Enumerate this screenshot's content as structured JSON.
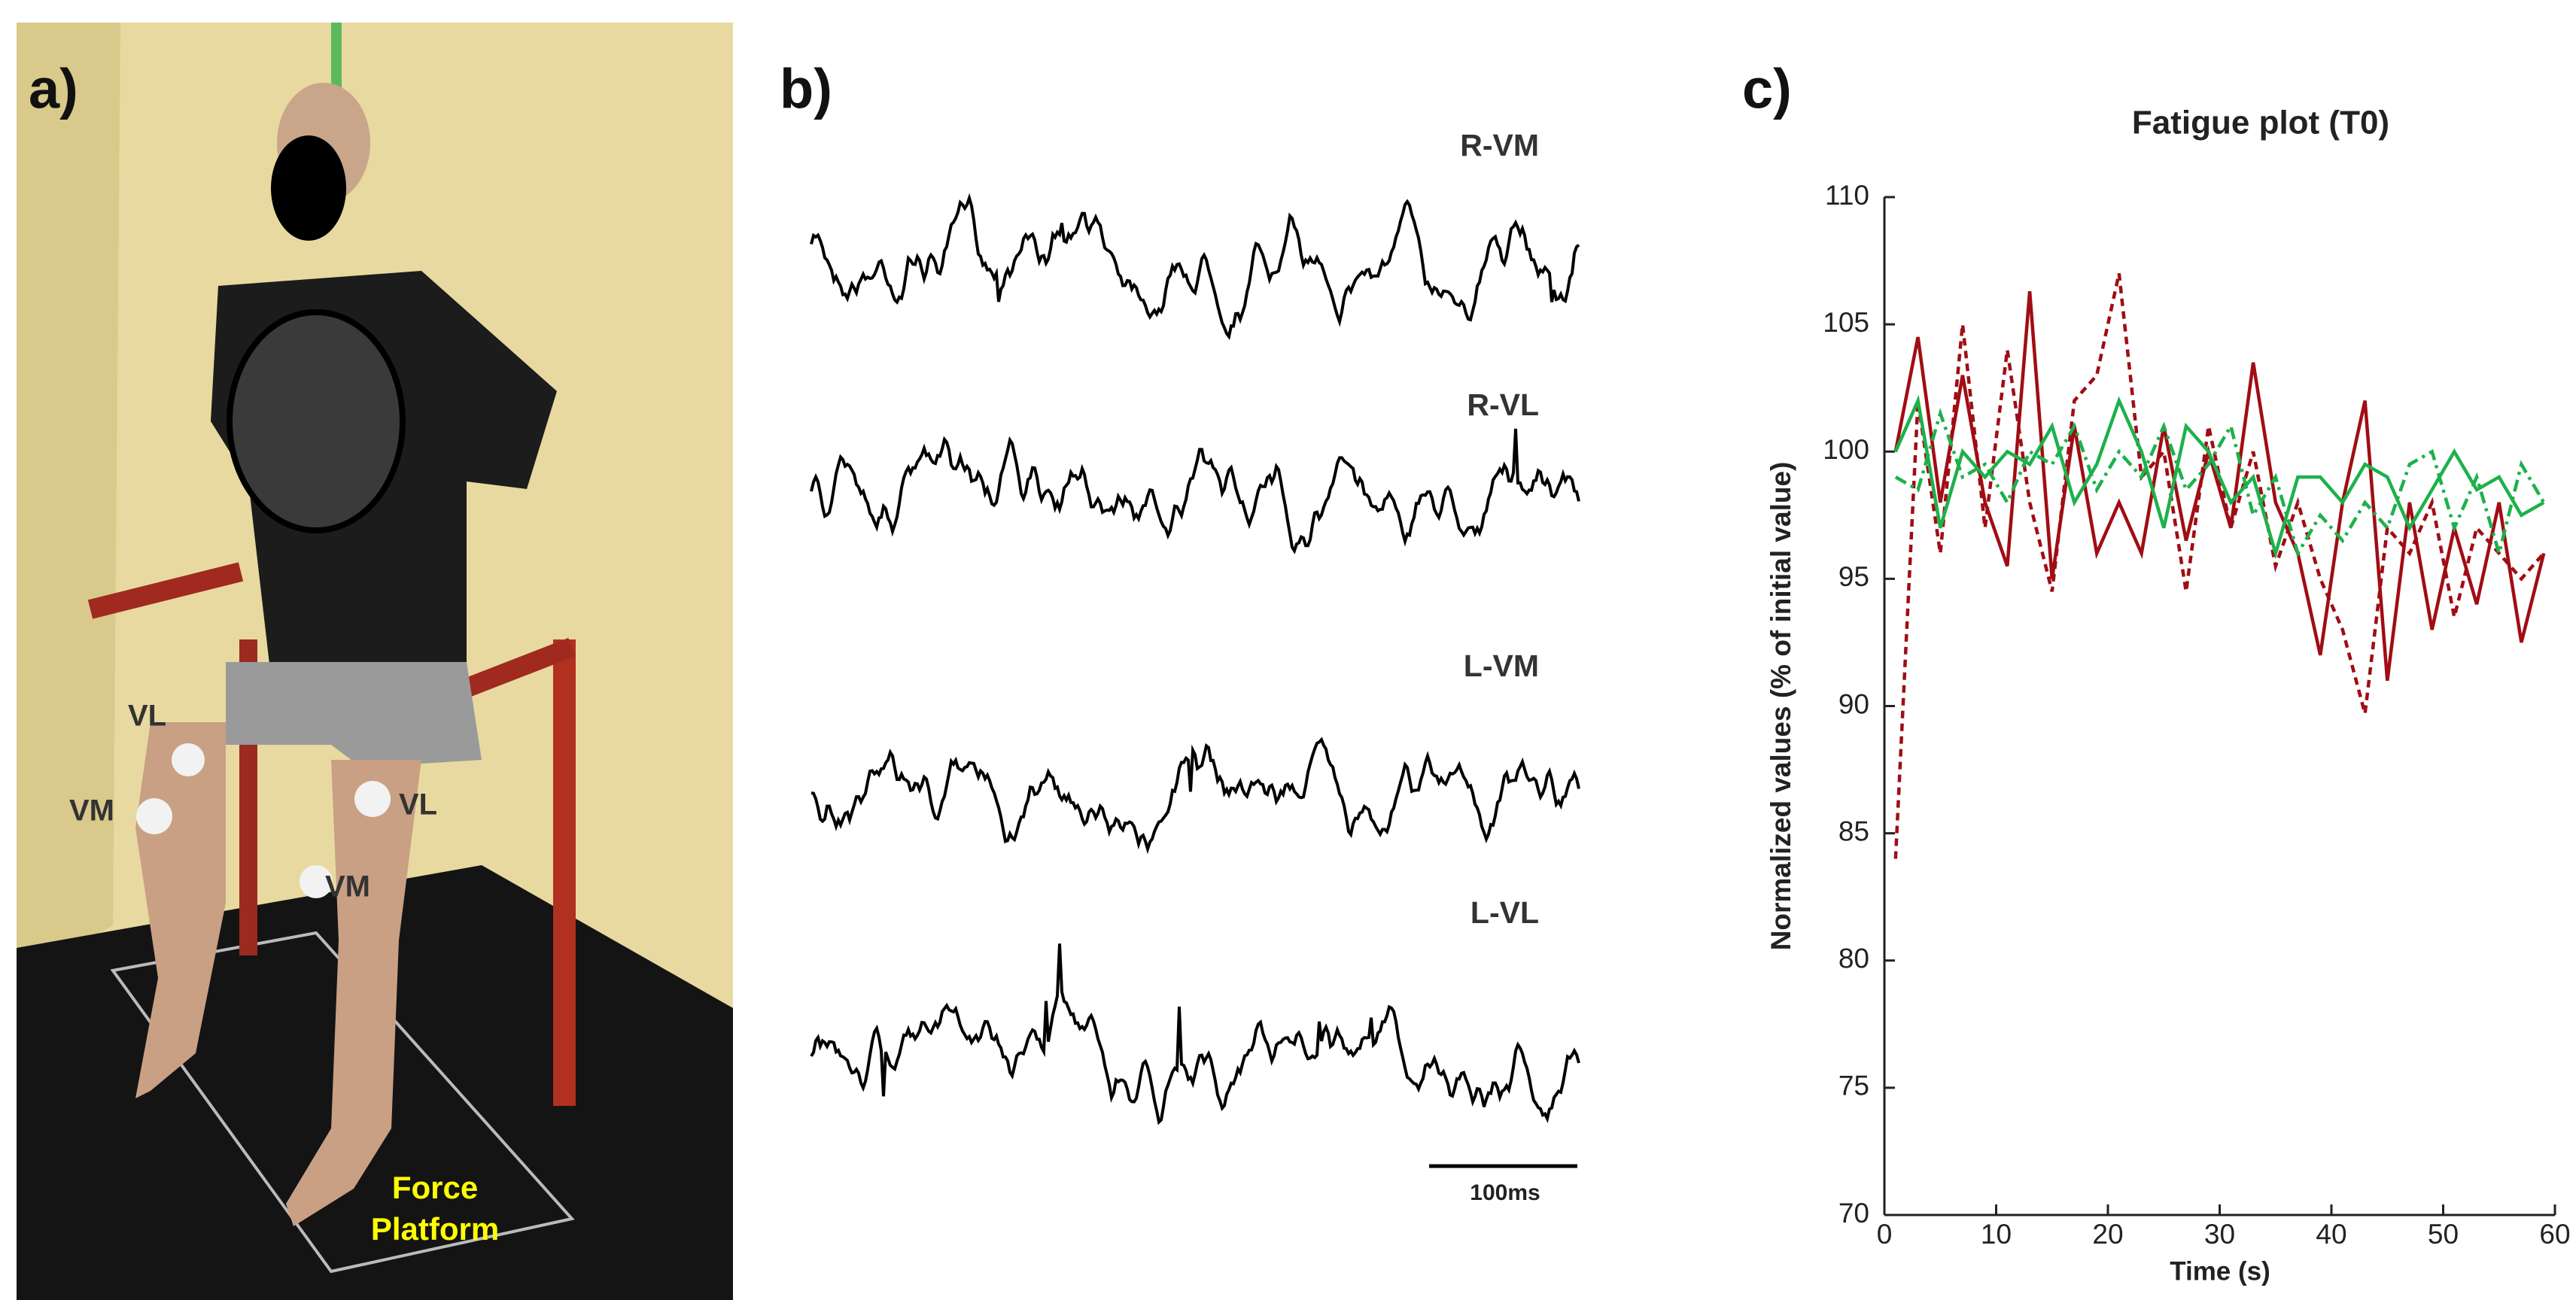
{
  "panel_a": {
    "label": "a)",
    "electrodes": [
      "VL",
      "VM",
      "VL",
      "VM"
    ],
    "platform": [
      "Force",
      "Platform"
    ]
  },
  "panel_b": {
    "label": "b)",
    "traces": [
      "R-VM",
      "R-VL",
      "L-VM",
      "L-VL"
    ],
    "scale_bar": "100ms"
  },
  "panel_c": {
    "label": "c)"
  },
  "chart_data": {
    "type": "line",
    "title": "Fatigue plot (T0)",
    "xlabel": "Time (s)",
    "ylabel": "Normalized values (% of initial value)",
    "x": [
      1,
      3,
      5,
      7,
      9,
      11,
      13,
      15,
      17,
      19,
      21,
      23,
      25,
      27,
      29,
      31,
      33,
      35,
      37,
      39,
      41,
      43,
      45,
      47,
      49,
      51,
      53,
      55,
      57,
      59
    ],
    "xlim": [
      0,
      60
    ],
    "ylim": [
      70,
      110
    ],
    "xticks": [
      0,
      10,
      20,
      30,
      40,
      50,
      60
    ],
    "yticks": [
      70,
      75,
      80,
      85,
      90,
      95,
      100,
      105,
      110
    ],
    "series": [
      {
        "color": "#a00d14",
        "dash": "solid",
        "values": [
          100,
          104.5,
          98,
          103,
          98,
          95.5,
          106.3,
          95,
          101,
          96,
          98,
          96,
          101,
          96.5,
          100,
          97,
          103.5,
          98,
          96,
          92,
          98,
          102,
          91,
          98,
          93,
          97,
          94,
          98,
          92.5,
          96
        ]
      },
      {
        "color": "#a00d14",
        "dash": "dashed",
        "values": [
          84,
          102,
          96,
          105,
          97,
          104,
          98,
          94.5,
          102,
          103,
          107,
          99,
          100,
          94.5,
          101,
          97,
          100,
          95.5,
          98,
          95,
          93,
          89.7,
          97,
          96,
          98,
          93.5,
          97,
          96,
          95,
          96
        ]
      },
      {
        "color": "#1db14b",
        "dash": "solid",
        "values": [
          100,
          102,
          97,
          100,
          99,
          100,
          99.5,
          101,
          98,
          99.5,
          102,
          100,
          97,
          101,
          100,
          98,
          99,
          96,
          99,
          99,
          98,
          99.5,
          99,
          97,
          98.5,
          100,
          98.5,
          99,
          97.5,
          98
        ]
      },
      {
        "color": "#1db14b",
        "dash": "dashdot",
        "values": [
          99,
          98.5,
          101.5,
          99,
          99.5,
          98,
          100,
          99.5,
          101,
          98.5,
          100,
          99,
          101,
          98.5,
          99.5,
          101,
          97.5,
          99,
          96,
          97.5,
          96.5,
          98,
          97,
          99.5,
          100,
          97,
          99,
          96,
          99.5,
          98
        ]
      }
    ]
  }
}
